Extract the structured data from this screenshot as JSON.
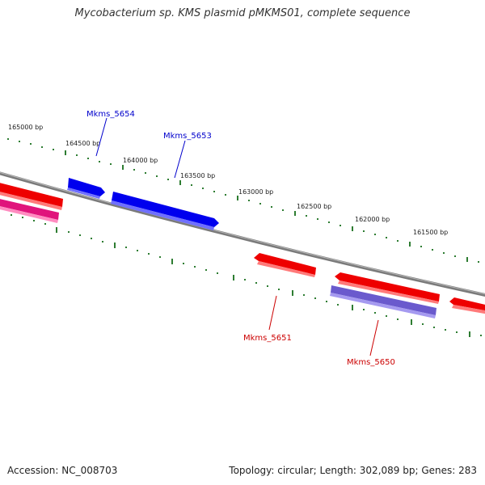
{
  "title": "Mycobacterium sp. KMS plasmid pMKMS01, complete sequence",
  "footer": {
    "accession": "Accession: NC_008703",
    "summary": "Topology: circular; Length: 302,089 bp; Genes: 283"
  },
  "scale": {
    "tick_labels": [
      "165000 bp",
      "164500 bp",
      "164000 bp",
      "163500 bp",
      "163000 bp",
      "162500 bp",
      "162000 bp",
      "161500 bp"
    ]
  },
  "genes": {
    "forward": [
      {
        "label": "Mkms_5654",
        "color": "#0000cc"
      },
      {
        "label": "Mkms_5653",
        "color": "#0000cc"
      }
    ],
    "reverse": [
      {
        "label": "Mkms_5651",
        "color": "#cc0000"
      },
      {
        "label": "Mkms_5650",
        "color": "#cc0000"
      }
    ]
  },
  "colors": {
    "backbone": "#808080",
    "tick": "#2e7d32",
    "forward_gene": "#0000ee",
    "reverse_gene": "#ee0000",
    "magenta_gene": "#e0147c",
    "purple_gene": "#6a5acd"
  }
}
